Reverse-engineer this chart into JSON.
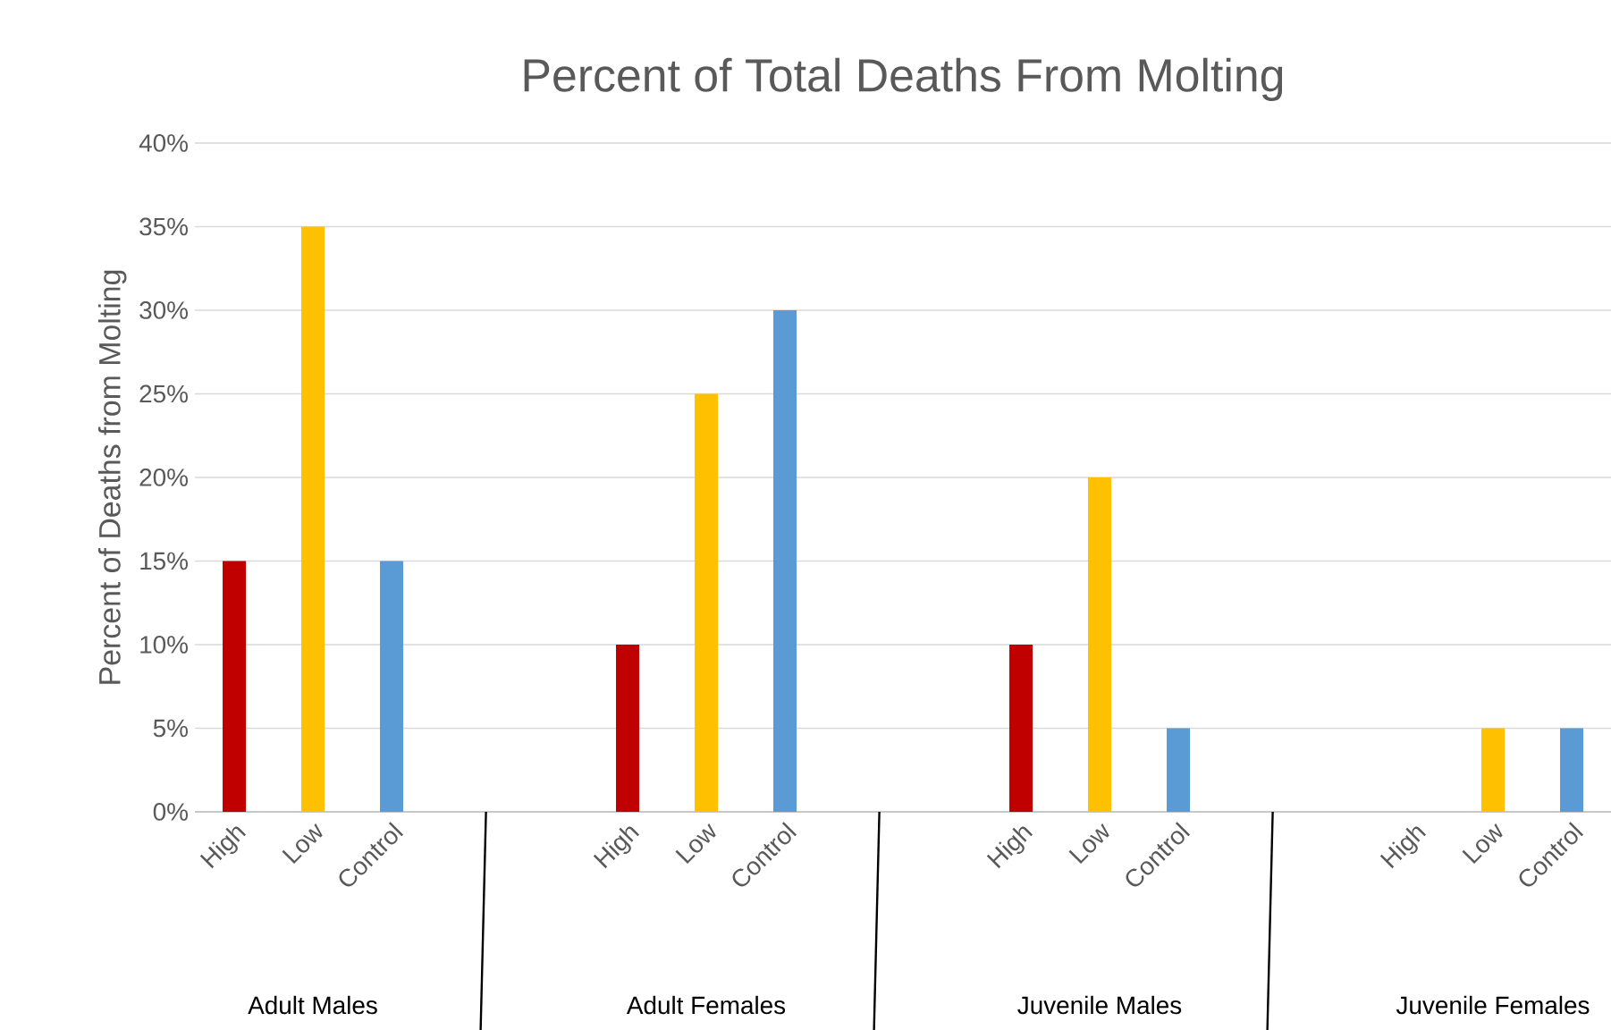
{
  "chart_data": {
    "type": "bar",
    "title": "Percent of Total Deaths From Molting",
    "ylabel": "Percent of Deaths from Molting",
    "categories": [
      "High",
      "Low",
      "Control",
      null,
      null,
      "High",
      "Low",
      "Control",
      null,
      null,
      "High",
      "Low",
      "Control",
      null,
      null,
      "High",
      "Low",
      "Control"
    ],
    "values": [
      15,
      35,
      15,
      null,
      null,
      10,
      25,
      30,
      null,
      null,
      10,
      20,
      5,
      null,
      null,
      0,
      5,
      5
    ],
    "colors": [
      "#c00000",
      "#ffc000",
      "#5b9bd5",
      null,
      null,
      "#c00000",
      "#ffc000",
      "#5b9bd5",
      null,
      null,
      "#c00000",
      "#ffc000",
      "#5b9bd5",
      null,
      null,
      "#c00000",
      "#ffc000",
      "#5b9bd5"
    ],
    "ylim": [
      0,
      40
    ],
    "yticks": [
      {
        "value": 0,
        "label": "0%"
      },
      {
        "value": 5,
        "label": "5%"
      },
      {
        "value": 10,
        "label": "10%"
      },
      {
        "value": 15,
        "label": "15%"
      },
      {
        "value": 20,
        "label": "20%"
      },
      {
        "value": 25,
        "label": "25%"
      },
      {
        "value": 30,
        "label": "30%"
      },
      {
        "value": 35,
        "label": "35%"
      },
      {
        "value": 40,
        "label": "40%"
      }
    ],
    "grid": "y",
    "annotations": [
      "Adult Males",
      "Adult Females",
      "Juvenile Males",
      "Juvenile Females"
    ]
  }
}
